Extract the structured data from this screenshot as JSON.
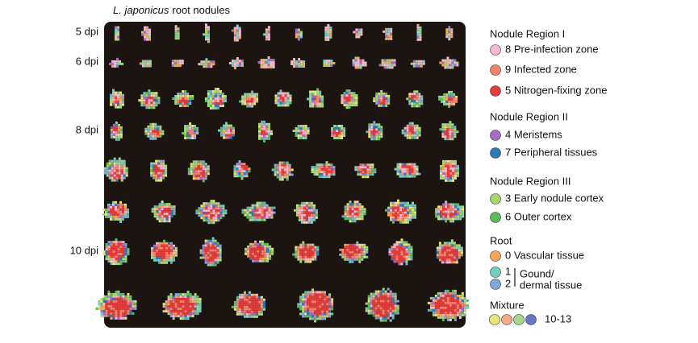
{
  "title": {
    "italic": "L. japonicus",
    "rest": "root nodules"
  },
  "row_labels": [
    "5 dpi",
    "6 dpi",
    "8 dpi",
    "10 dpi"
  ],
  "legend": [
    {
      "title": "Nodule Region I",
      "items": [
        {
          "label": "8 Pre-infection zone",
          "color": "#f4b8d4"
        },
        {
          "label": "9 Infected zone",
          "color": "#f08470"
        },
        {
          "label": "5 Nitrogen-fixing zone",
          "color": "#e63c3c"
        }
      ]
    },
    {
      "title": "Nodule Region II",
      "items": [
        {
          "label": "4 Meristems",
          "color": "#a86cc2"
        },
        {
          "label": "7 Peripheral tissues",
          "color": "#2c7bb6"
        }
      ]
    },
    {
      "title": "Nodule Region III",
      "items": [
        {
          "label": "3 Early nodule cortex",
          "color": "#a8d86c"
        },
        {
          "label": "6 Outer cortex",
          "color": "#5dba5d"
        }
      ]
    },
    {
      "title": "Root",
      "items": [
        {
          "label": "0 Vascular tissue",
          "color": "#f5a75a"
        }
      ],
      "bracket_items": [
        {
          "label": "1",
          "color": "#72d0c0"
        },
        {
          "label": "2",
          "color": "#80a8d8"
        }
      ],
      "bracket_label": [
        "Gound/",
        "dermal tissue"
      ]
    },
    {
      "title": "Mixture",
      "colors": [
        "#ece477",
        "#f4a98a",
        "#a8d68c",
        "#6a76cc"
      ],
      "label": "10-13"
    }
  ]
}
